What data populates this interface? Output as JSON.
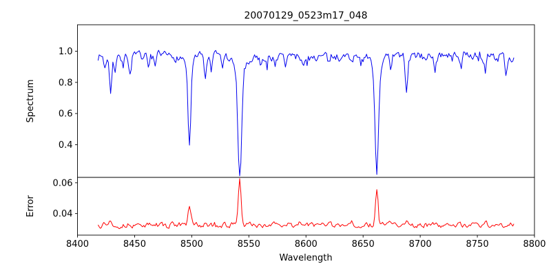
{
  "chart_data": {
    "type": "line",
    "title": "20070129_0523m17_048",
    "xlabel": "Wavelength",
    "x_range": [
      8400,
      8800
    ],
    "x_ticks": [
      {
        "v": 8400,
        "label": "8400"
      },
      {
        "v": 8450,
        "label": "8450"
      },
      {
        "v": 8500,
        "label": "8500"
      },
      {
        "v": 8550,
        "label": "8550"
      },
      {
        "v": 8600,
        "label": "8600"
      },
      {
        "v": 8650,
        "label": "8650"
      },
      {
        "v": 8700,
        "label": "8700"
      },
      {
        "v": 8750,
        "label": "8750"
      },
      {
        "v": 8800,
        "label": "8800"
      }
    ],
    "data_x_start": 8418,
    "data_x_end": 8782,
    "data_x_step": 1,
    "grid": false,
    "legend": "none",
    "panels": [
      {
        "name": "spectrum",
        "ylabel": "Spectrum",
        "color": "#0000ee",
        "ylim": [
          0.19,
          1.17
        ],
        "y_ticks": [
          {
            "v": 0.4,
            "label": "0.4"
          },
          {
            "v": 0.6,
            "label": "0.6"
          },
          {
            "v": 0.8,
            "label": "0.8"
          },
          {
            "v": 1.0,
            "label": "1.0"
          }
        ],
        "continuum": 0.965,
        "noise_amplitude": 0.025,
        "absorption_lines": [
          {
            "center": 8424,
            "depth": 0.08,
            "sigma": 0.8
          },
          {
            "center": 8429,
            "depth": 0.21,
            "sigma": 0.9
          },
          {
            "center": 8433,
            "depth": 0.09,
            "sigma": 0.8
          },
          {
            "center": 8440,
            "depth": 0.07,
            "sigma": 0.8
          },
          {
            "center": 8446,
            "depth": 0.11,
            "sigma": 0.9
          },
          {
            "center": 8462,
            "depth": 0.08,
            "sigma": 0.8
          },
          {
            "center": 8468,
            "depth": 0.1,
            "sigma": 0.9
          },
          {
            "center": 8498,
            "depth": 0.52,
            "sigma": 1.2
          },
          {
            "center": 8498,
            "depth": 0.06,
            "sigma": 3.5
          },
          {
            "center": 8512,
            "depth": 0.13,
            "sigma": 1.0
          },
          {
            "center": 8517,
            "depth": 0.1,
            "sigma": 0.9
          },
          {
            "center": 8527,
            "depth": 0.07,
            "sigma": 0.8
          },
          {
            "center": 8542,
            "depth": 0.68,
            "sigma": 1.5
          },
          {
            "center": 8542,
            "depth": 0.12,
            "sigma": 4.5
          },
          {
            "center": 8560,
            "depth": 0.05,
            "sigma": 0.8
          },
          {
            "center": 8582,
            "depth": 0.06,
            "sigma": 0.8
          },
          {
            "center": 8598,
            "depth": 0.07,
            "sigma": 0.9
          },
          {
            "center": 8620,
            "depth": 0.05,
            "sigma": 0.8
          },
          {
            "center": 8662,
            "depth": 0.64,
            "sigma": 1.4
          },
          {
            "center": 8662,
            "depth": 0.11,
            "sigma": 4.0
          },
          {
            "center": 8674,
            "depth": 0.1,
            "sigma": 0.9
          },
          {
            "center": 8688,
            "depth": 0.22,
            "sigma": 1.0
          },
          {
            "center": 8713,
            "depth": 0.07,
            "sigma": 0.8
          },
          {
            "center": 8736,
            "depth": 0.08,
            "sigma": 0.8
          },
          {
            "center": 8757,
            "depth": 0.09,
            "sigma": 0.9
          },
          {
            "center": 8775,
            "depth": 0.1,
            "sigma": 0.9
          }
        ]
      },
      {
        "name": "error",
        "ylabel": "Error",
        "color": "#ff0000",
        "ylim": [
          0.026,
          0.0635
        ],
        "y_ticks": [
          {
            "v": 0.04,
            "label": "0.04"
          },
          {
            "v": 0.06,
            "label": "0.06"
          }
        ],
        "baseline": 0.0325,
        "noise_amplitude": 0.0015,
        "peaks": [
          {
            "center": 8424,
            "amp": 0.0015,
            "sigma": 0.9
          },
          {
            "center": 8429,
            "amp": 0.0035,
            "sigma": 0.9
          },
          {
            "center": 8446,
            "amp": 0.0015,
            "sigma": 0.9
          },
          {
            "center": 8498,
            "amp": 0.013,
            "sigma": 1.1
          },
          {
            "center": 8512,
            "amp": 0.002,
            "sigma": 0.9
          },
          {
            "center": 8542,
            "amp": 0.0285,
            "sigma": 1.2
          },
          {
            "center": 8662,
            "amp": 0.024,
            "sigma": 1.1
          },
          {
            "center": 8674,
            "amp": 0.0015,
            "sigma": 0.9
          },
          {
            "center": 8688,
            "amp": 0.004,
            "sigma": 1.0
          },
          {
            "center": 8757,
            "amp": 0.0015,
            "sigma": 0.9
          }
        ]
      }
    ]
  }
}
